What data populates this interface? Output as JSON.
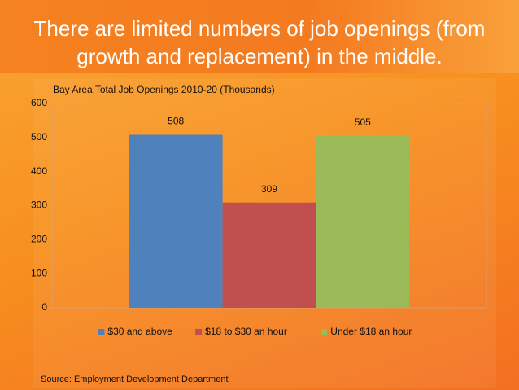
{
  "slide_title": "There are limited numbers of job openings (from growth and replacement) in the middle.",
  "source": "Source: Employment Development Department",
  "chart_data": {
    "type": "bar",
    "title": "Bay Area Total Job Openings 2010-20 (Thousands)",
    "categories": [
      null
    ],
    "series": [
      {
        "name": "$30 and above",
        "color": "#4f81bd",
        "values": [
          508
        ]
      },
      {
        "name": "$18 to $30 an hour",
        "color": "#c0504d",
        "values": [
          309
        ]
      },
      {
        "name": "Under $18 an hour",
        "color": "#9bbb59",
        "values": [
          505
        ]
      }
    ],
    "ylim": [
      0,
      600
    ],
    "yticks": [
      0,
      100,
      200,
      300,
      400,
      500,
      600
    ],
    "grid": false,
    "legend": "bottom"
  }
}
